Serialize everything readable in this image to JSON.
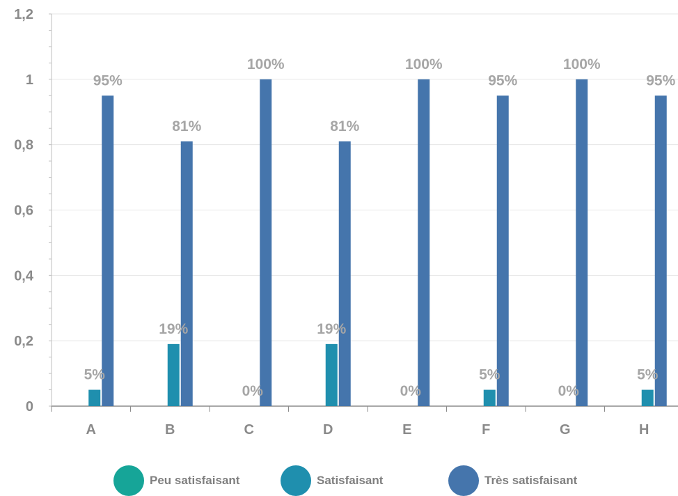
{
  "chart_data": {
    "type": "bar",
    "categories": [
      "A",
      "B",
      "C",
      "D",
      "E",
      "F",
      "G",
      "H"
    ],
    "series": [
      {
        "name": "Peu satisfaisant",
        "color": "#16a598",
        "values": [
          0,
          0,
          0,
          0,
          0,
          0,
          0,
          0
        ],
        "labels": [
          "",
          "",
          "",
          "",
          "",
          "",
          "",
          ""
        ]
      },
      {
        "name": "Satisfaisant",
        "color": "#1f8fae",
        "values": [
          0.05,
          0.19,
          0,
          0.19,
          0,
          0.05,
          0,
          0.05
        ],
        "labels": [
          "5%",
          "19%",
          "0%",
          "19%",
          "0%",
          "5%",
          "0%",
          "5%"
        ]
      },
      {
        "name": "Très satisfaisant",
        "color": "#4575ac",
        "values": [
          0.95,
          0.81,
          1,
          0.81,
          1,
          0.95,
          1,
          0.95
        ],
        "labels": [
          "95%",
          "81%",
          "100%",
          "81%",
          "100%",
          "95%",
          "100%",
          "95%"
        ]
      }
    ],
    "yticks": [
      "0",
      "0,2",
      "0,4",
      "0,6",
      "0,8",
      "1",
      "1,2"
    ],
    "ylim": [
      0,
      1.2
    ],
    "grid": true,
    "legend_position": "bottom"
  }
}
